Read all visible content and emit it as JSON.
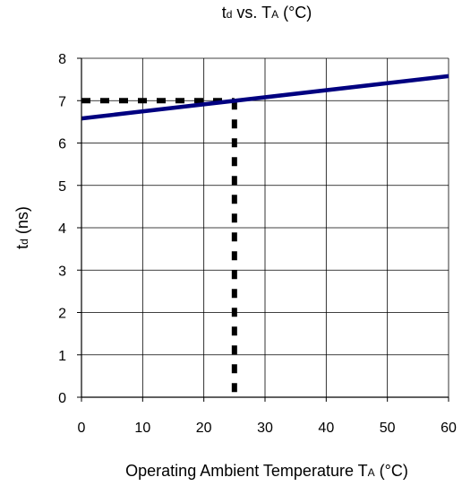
{
  "chart_data": {
    "type": "line",
    "title": {
      "main": "t",
      "main_sub": "d",
      "mid": " vs. T",
      "mid_sub": "A",
      "end": " (°C)"
    },
    "ylabel": {
      "main": "t",
      "sub": "d",
      "end": " (ns)"
    },
    "xlabel": {
      "main": "Operating Ambient Temperature T",
      "sub": "A",
      "end": " (°C)"
    },
    "xlim": [
      0,
      60
    ],
    "ylim": [
      0,
      8
    ],
    "x_ticks": [
      "0",
      "10",
      "20",
      "30",
      "40",
      "50",
      "60"
    ],
    "y_ticks": [
      "0",
      "1",
      "2",
      "3",
      "4",
      "5",
      "6",
      "7",
      "8"
    ],
    "grid": true,
    "series": [
      {
        "x": [
          0,
          60
        ],
        "y": [
          6.58,
          7.58
        ],
        "color": "#000080",
        "style": "solid"
      }
    ],
    "reference_lines": [
      {
        "x": [
          0,
          25
        ],
        "y": [
          7,
          7
        ],
        "color": "#000000",
        "style": "dashed"
      },
      {
        "x": [
          25,
          25
        ],
        "y": [
          7,
          0
        ],
        "color": "#000000",
        "style": "dashed"
      }
    ]
  }
}
